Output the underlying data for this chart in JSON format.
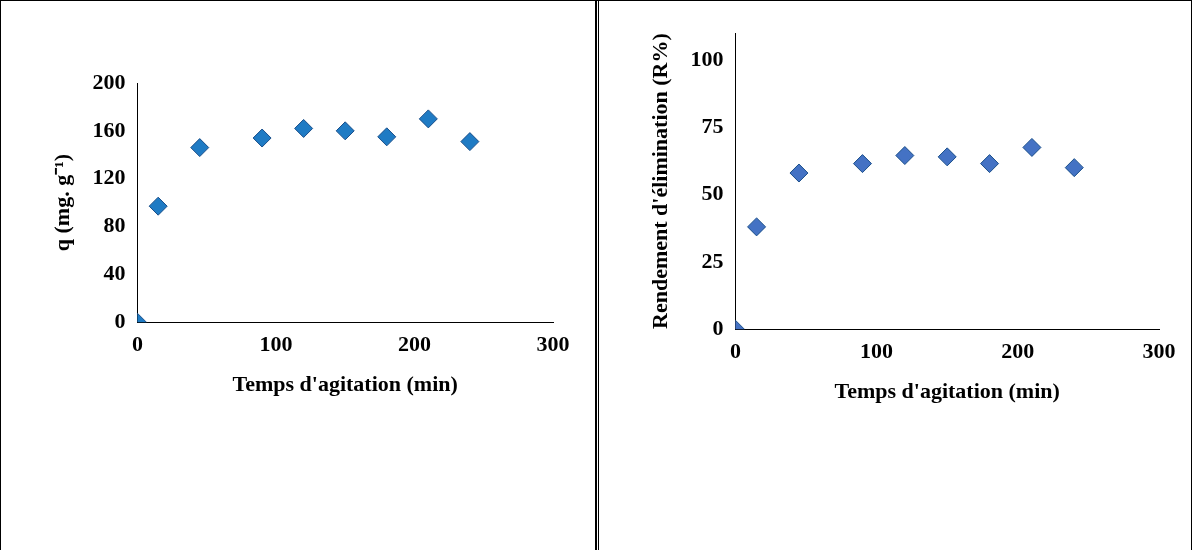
{
  "chart_data": [
    {
      "type": "scatter",
      "xlabel": "Temps d'agitation (min)",
      "ylabel": "q (mg. g⁻¹)",
      "x": [
        0,
        15,
        45,
        90,
        120,
        150,
        180,
        210,
        240
      ],
      "series": [
        {
          "color": "#1f7bc4",
          "values": [
            0,
            97,
            146,
            154,
            162,
            160,
            155,
            170,
            151
          ]
        }
      ],
      "xlim": [
        0,
        300
      ],
      "xticks": [
        0,
        100,
        200,
        300
      ],
      "ylim": [
        0,
        200
      ],
      "yticks": [
        0,
        40,
        80,
        120,
        160,
        200
      ],
      "grid": false,
      "legend": false,
      "marker": "diamond"
    },
    {
      "type": "scatter",
      "xlabel": "Temps d'agitation (min)",
      "ylabel": "Rendement d'élimination (R%)",
      "x": [
        0,
        15,
        45,
        90,
        120,
        150,
        180,
        210,
        240
      ],
      "series": [
        {
          "color": "#4472c4",
          "values": [
            0,
            38,
            58,
            61.5,
            64.5,
            64,
            61.5,
            67.5,
            60
          ]
        }
      ],
      "xlim": [
        0,
        300
      ],
      "xticks": [
        0,
        100,
        200,
        300
      ],
      "ylim": [
        0,
        110
      ],
      "yticks": [
        0,
        25,
        50,
        75,
        100
      ],
      "grid": false,
      "legend": false,
      "marker": "diamond"
    }
  ]
}
